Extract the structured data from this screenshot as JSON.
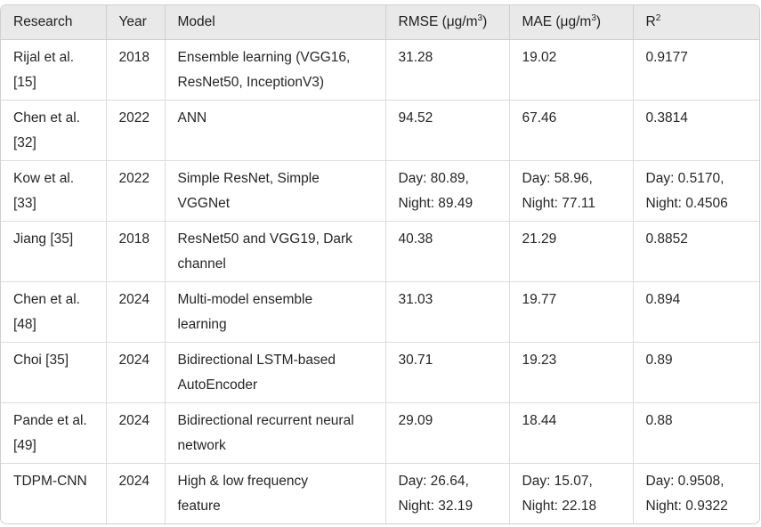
{
  "table": {
    "headers": {
      "research": "Research",
      "year": "Year",
      "model": "Model",
      "rmse": "RMSE (μg/m",
      "rmse_sup": "3",
      "rmse_close": ")",
      "mae": "MAE (μg/m",
      "mae_sup": "3",
      "mae_close": ")",
      "r2": "R",
      "r2_sup": "2"
    },
    "rows": [
      {
        "research": [
          "Rijal et al.",
          "[15]"
        ],
        "year": "2018",
        "model": [
          "Ensemble learning (VGG16,",
          "ResNet50, InceptionV3)"
        ],
        "rmse": [
          "31.28",
          ""
        ],
        "mae": [
          "19.02",
          ""
        ],
        "r2": [
          "0.9177",
          ""
        ]
      },
      {
        "research": [
          "Chen et al.",
          "[32]"
        ],
        "year": "2022",
        "model": [
          "ANN",
          ""
        ],
        "rmse": [
          "94.52",
          ""
        ],
        "mae": [
          "67.46",
          ""
        ],
        "r2": [
          "0.3814",
          ""
        ]
      },
      {
        "research": [
          "Kow et al.",
          "[33]"
        ],
        "year": "2022",
        "model": [
          "Simple ResNet, Simple",
          "VGGNet"
        ],
        "rmse": [
          "Day: 80.89,",
          "Night: 89.49"
        ],
        "mae": [
          "Day: 58.96,",
          "Night: 77.11"
        ],
        "r2": [
          "Day: 0.5170,",
          "Night: 0.4506"
        ]
      },
      {
        "research": [
          "Jiang [35]",
          ""
        ],
        "year": "2018",
        "model": [
          "ResNet50 and VGG19, Dark",
          "channel"
        ],
        "rmse": [
          "40.38",
          ""
        ],
        "mae": [
          "21.29",
          ""
        ],
        "r2": [
          "0.8852",
          ""
        ]
      },
      {
        "research": [
          "Chen et al.",
          "[48]"
        ],
        "year": "2024",
        "model": [
          "Multi-model ensemble",
          "learning"
        ],
        "rmse": [
          "31.03",
          ""
        ],
        "mae": [
          "19.77",
          ""
        ],
        "r2": [
          "0.894",
          ""
        ]
      },
      {
        "research": [
          "Choi [35]",
          ""
        ],
        "year": "2024",
        "model": [
          "Bidirectional LSTM-based",
          "AutoEncoder"
        ],
        "rmse": [
          "30.71",
          ""
        ],
        "mae": [
          "19.23",
          ""
        ],
        "r2": [
          "0.89",
          ""
        ]
      },
      {
        "research": [
          "Pande et al.",
          "[49]"
        ],
        "year": "2024",
        "model": [
          "Bidirectional recurrent neural",
          "network"
        ],
        "rmse": [
          "29.09",
          ""
        ],
        "mae": [
          "18.44",
          ""
        ],
        "r2": [
          "0.88",
          ""
        ]
      },
      {
        "research": [
          "TDPM-CNN",
          ""
        ],
        "year": "2024",
        "model": [
          "High & low frequency",
          "feature"
        ],
        "rmse": [
          "Day: 26.64,",
          "Night: 32.19"
        ],
        "mae": [
          "Day: 15.07,",
          "Night: 22.18"
        ],
        "r2": [
          "Day: 0.9508,",
          "Night: 0.9322"
        ]
      }
    ]
  }
}
